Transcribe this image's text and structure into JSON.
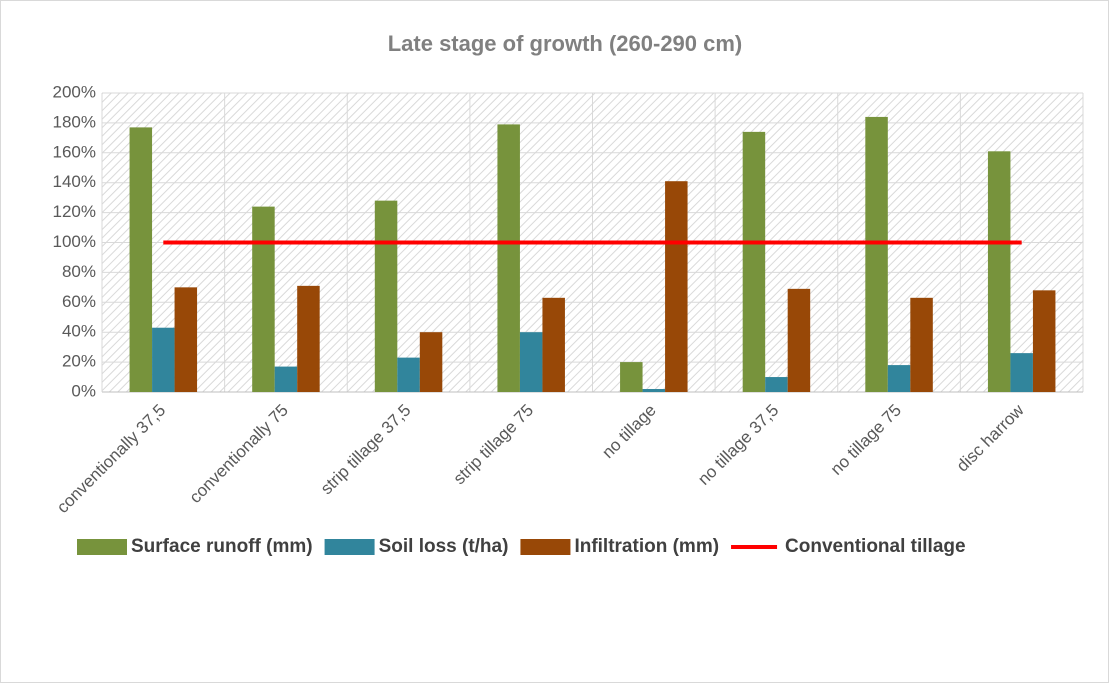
{
  "chart_data": {
    "type": "bar",
    "title": "Late stage of growth (260-290 cm)",
    "categories": [
      "conventionally 37,5",
      "conventionally 75",
      "strip tillage 37,5",
      "strip tillage 75",
      "no tillage",
      "no tillage 37,5",
      "no tillage 75",
      "disc harrow"
    ],
    "series": [
      {
        "name": "Surface runoff (mm)",
        "color": "#77933c",
        "values": [
          177,
          124,
          128,
          179,
          20,
          174,
          184,
          161
        ]
      },
      {
        "name": "Soil loss (t/ha)",
        "color": "#31859c",
        "values": [
          43,
          17,
          23,
          40,
          2,
          10,
          18,
          26
        ]
      },
      {
        "name": "Infiltration (mm)",
        "color": "#984807",
        "values": [
          70,
          71,
          40,
          63,
          141,
          69,
          63,
          68
        ]
      },
      {
        "name": "Conventional tillage",
        "color": "#ff0000",
        "type": "line",
        "values": [
          100,
          100,
          100,
          100,
          100,
          100,
          100,
          100
        ]
      }
    ],
    "ylim": [
      0,
      200
    ],
    "yticks": [
      {
        "value": 0,
        "label": "0%"
      },
      {
        "value": 20,
        "label": "20%"
      },
      {
        "value": 40,
        "label": "40%"
      },
      {
        "value": 60,
        "label": "60%"
      },
      {
        "value": 80,
        "label": "80%"
      },
      {
        "value": 100,
        "label": "100%"
      },
      {
        "value": 120,
        "label": "120%"
      },
      {
        "value": 140,
        "label": "140%"
      },
      {
        "value": 160,
        "label": "160%"
      },
      {
        "value": 180,
        "label": "180%"
      },
      {
        "value": 200,
        "label": "200%"
      }
    ],
    "grid": true,
    "legend": "bottom"
  }
}
